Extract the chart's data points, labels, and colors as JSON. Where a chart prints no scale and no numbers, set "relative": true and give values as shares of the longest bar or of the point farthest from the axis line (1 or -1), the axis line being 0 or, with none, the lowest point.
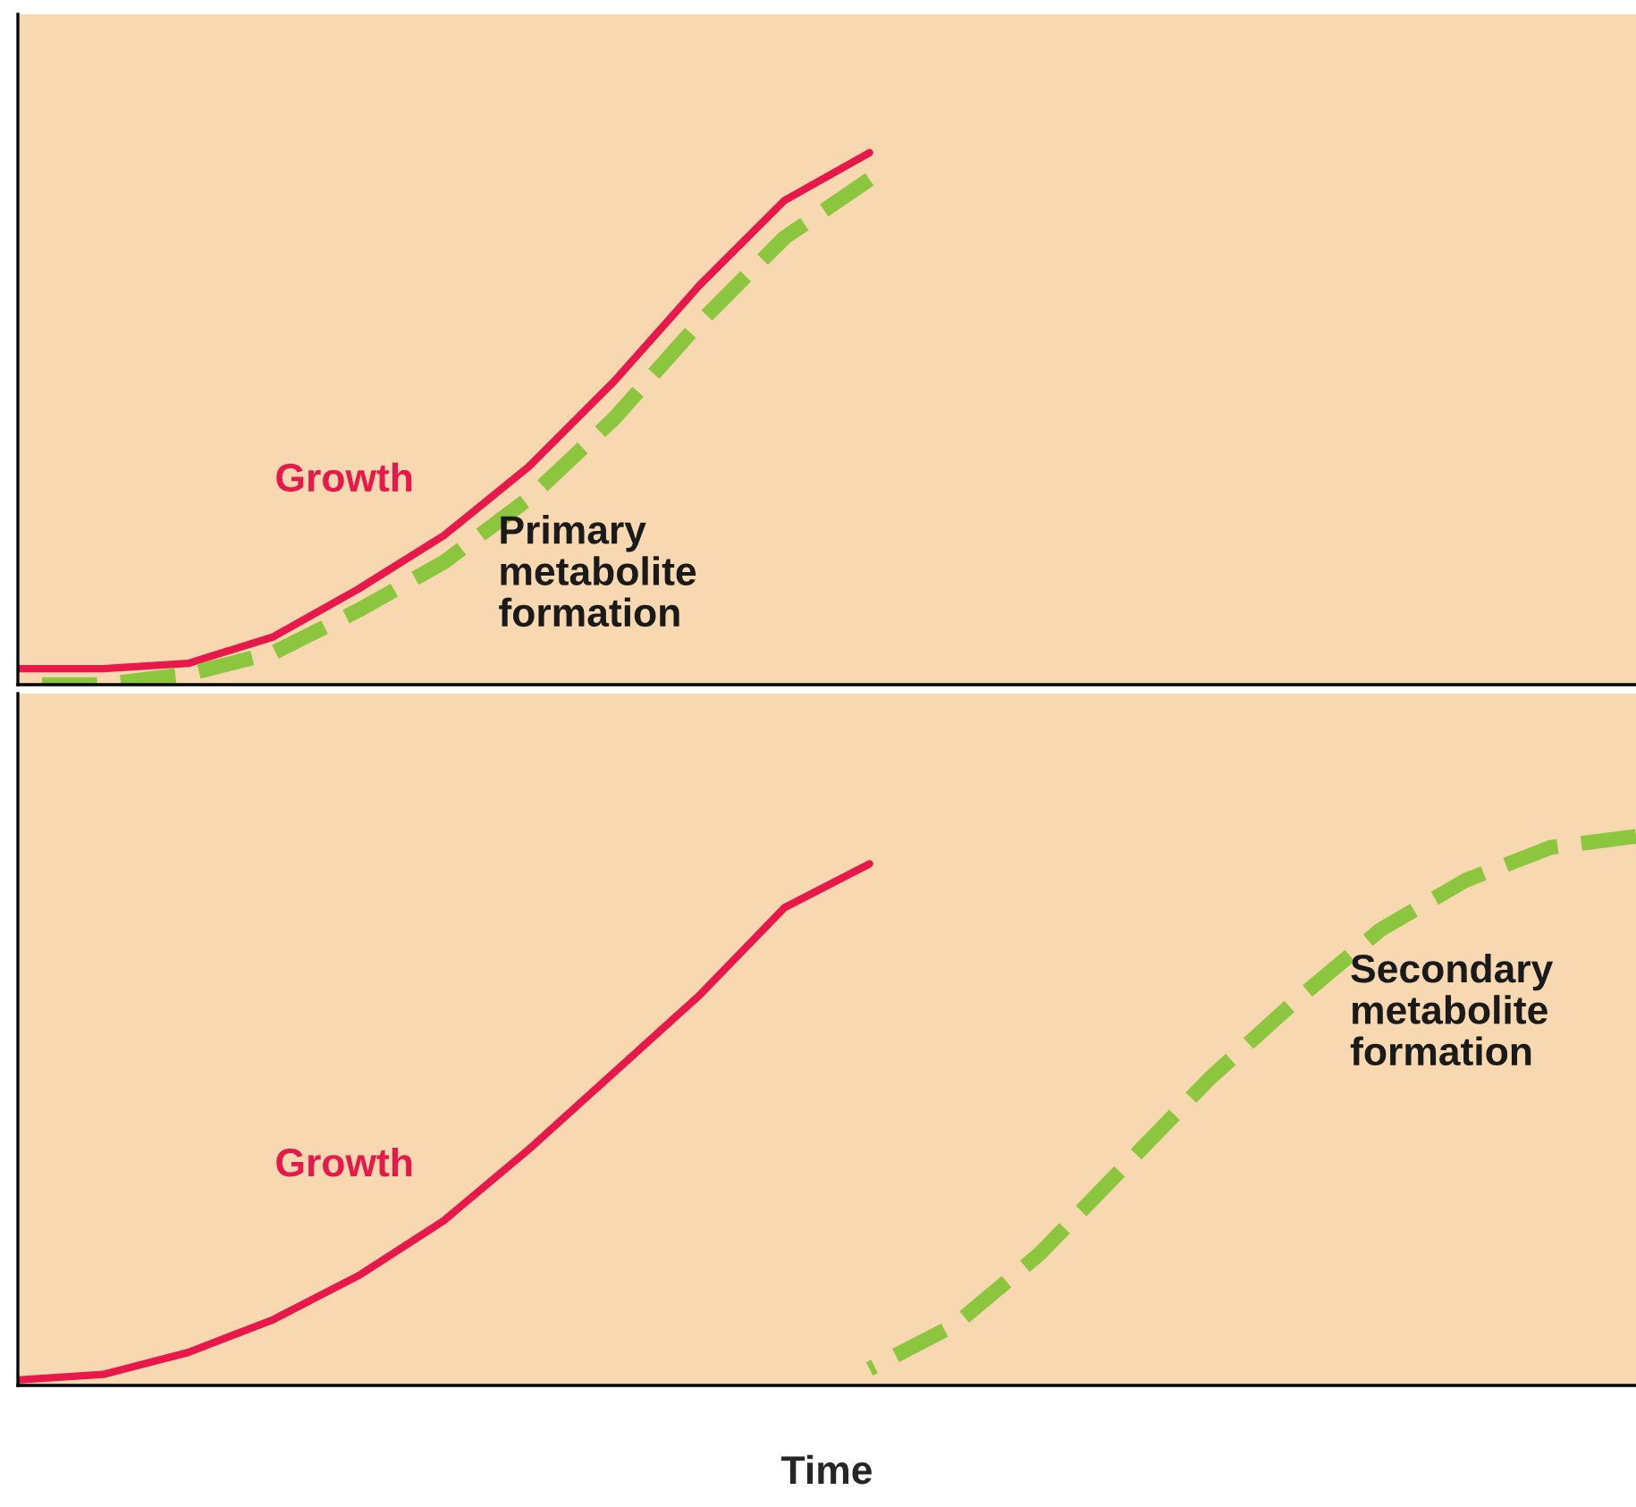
{
  "chart_data": [
    {
      "type": "line",
      "relative": true,
      "tick_labels": false,
      "legend": false,
      "categories": [
        null,
        null,
        null,
        null,
        null,
        null,
        null,
        null,
        null,
        null,
        null,
        null,
        null,
        null,
        null,
        null,
        null,
        null,
        null,
        null
      ],
      "series": [
        {
          "name": "Growth",
          "color": "#e8194a",
          "line_style": "solid",
          "values": [
            0.03,
            0.03,
            0.04,
            0.09,
            0.18,
            0.28,
            0.41,
            0.57,
            0.75,
            0.91,
            1.0,
            null,
            null,
            null,
            null,
            null,
            null,
            null,
            null,
            null
          ]
        },
        {
          "name": "Primary metabolite formation",
          "color": "#8cc63f",
          "line_style": "dashed",
          "values": [
            0.0,
            0.0,
            0.02,
            0.06,
            0.14,
            0.23,
            0.35,
            0.5,
            0.68,
            0.84,
            0.95,
            null,
            null,
            null,
            null,
            null,
            null,
            null,
            null,
            null
          ]
        }
      ]
    },
    {
      "type": "line",
      "relative": true,
      "tick_labels": false,
      "legend": false,
      "xlabel": "Time",
      "categories": [
        null,
        null,
        null,
        null,
        null,
        null,
        null,
        null,
        null,
        null,
        null,
        null,
        null,
        null,
        null,
        null,
        null,
        null,
        null,
        null
      ],
      "series": [
        {
          "name": "Growth",
          "color": "#e8194a",
          "line_style": "solid",
          "values": [
            0.01,
            0.02,
            0.06,
            0.12,
            0.2,
            0.3,
            0.43,
            0.57,
            0.71,
            0.87,
            0.95,
            null,
            null,
            null,
            null,
            null,
            null,
            null,
            null,
            null
          ]
        },
        {
          "name": "Secondary metabolite formation",
          "color": "#8cc63f",
          "line_style": "dashed",
          "values": [
            null,
            null,
            null,
            null,
            null,
            null,
            null,
            null,
            null,
            null,
            0.03,
            0.11,
            0.24,
            0.4,
            0.56,
            0.7,
            0.83,
            0.92,
            0.98,
            1.0
          ]
        }
      ]
    }
  ]
}
